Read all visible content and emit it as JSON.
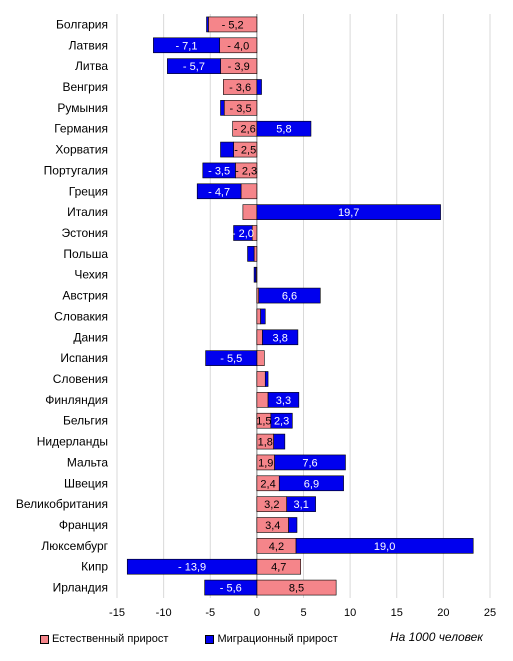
{
  "chart_data": {
    "type": "bar",
    "orientation": "horizontal",
    "stacked": true,
    "categories": [
      "Болгария",
      "Латвия",
      "Литва",
      "Венгрия",
      "Румыния",
      "Германия",
      "Хорватия",
      "Португалия",
      "Греция",
      "Италия",
      "Эстония",
      "Польша",
      "Чехия",
      "Австрия",
      "Словакия",
      "Дания",
      "Испания",
      "Словения",
      "Финляндия",
      "Бельгия",
      "Нидерланды",
      "Мальта",
      "Швеция",
      "Великобритания",
      "Франция",
      "Люксембург",
      "Кипр",
      "Ирландия"
    ],
    "series": [
      {
        "name": "Естественный прирост",
        "color": "#f5858a",
        "values": [
          -5.2,
          -4.0,
          -3.9,
          -3.6,
          -3.5,
          -2.6,
          -2.5,
          -2.3,
          -1.7,
          -1.5,
          -0.5,
          -0.3,
          -0.1,
          0.2,
          0.4,
          0.6,
          0.8,
          0.9,
          1.2,
          1.5,
          1.8,
          1.9,
          2.4,
          3.2,
          3.4,
          4.2,
          4.7,
          8.5
        ],
        "labels": [
          "- 5,2",
          "- 4,0",
          "- 3,9",
          "- 3,6",
          "- 3,5",
          "- 2,6",
          "- 2,5",
          "- 2,3",
          "",
          "",
          "",
          "",
          "",
          "",
          "",
          "",
          "",
          "",
          "",
          "1,5",
          "1,8",
          "1,9",
          "2,4",
          "3,2",
          "3,4",
          "4,2",
          "4,7",
          "8,5"
        ]
      },
      {
        "name": "Миграционный прирост",
        "color": "#0000ee",
        "values": [
          -0.2,
          -7.1,
          -5.7,
          0.5,
          -0.4,
          5.8,
          -1.4,
          -3.5,
          -4.7,
          19.7,
          -2.0,
          -0.7,
          -0.2,
          6.6,
          0.5,
          3.8,
          -5.5,
          0.3,
          3.3,
          2.3,
          1.2,
          7.6,
          6.9,
          3.1,
          0.9,
          19.0,
          -13.9,
          -5.6
        ],
        "labels": [
          "",
          "- 7,1",
          "- 5,7",
          "",
          "",
          "5,8",
          "",
          "- 3,5",
          "- 4,7",
          "19,7",
          "- 2,0",
          "",
          "",
          "6,6",
          "",
          "3,8",
          "- 5,5",
          "",
          "3,3",
          "2,3",
          "",
          "7,6",
          "6,9",
          "3,1",
          "",
          "19,0",
          "- 13,9",
          "- 5,6"
        ]
      }
    ],
    "xlim": [
      -15,
      25
    ],
    "xticks": [
      -15,
      -10,
      -5,
      0,
      5,
      10,
      15,
      20,
      25
    ],
    "grid": true,
    "legend_position": "bottom-left",
    "units_note": "На 1000 человек"
  }
}
